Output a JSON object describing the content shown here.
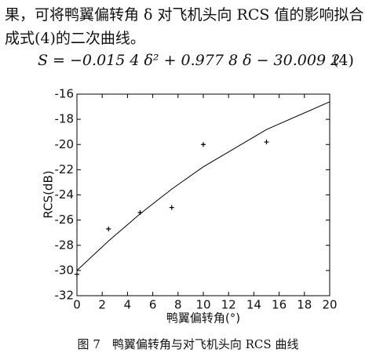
{
  "text": {
    "line1": "果，可将鸭翼偏转角 δ 对飞机头向 RCS 值的影响拟合",
    "line2": "成式(4)的二次曲线。",
    "equation": "S = −0.015 4 δ² + 0.977 8 δ − 30.009 2",
    "equation_number": "(4)"
  },
  "chart_data": {
    "type": "scatter",
    "y_label": "RCS(dB)",
    "x_label": "鸭翼偏转角(°)",
    "xlim": [
      0,
      20
    ],
    "ylim": [
      -32,
      -16
    ],
    "xticks": [
      0,
      2,
      4,
      6,
      8,
      10,
      12,
      14,
      16,
      18,
      20
    ],
    "yticks": [
      -32,
      -30,
      -28,
      -26,
      -24,
      -22,
      -20,
      -18,
      -16
    ],
    "series": [
      {
        "type": "scatter",
        "color": "#000000",
        "x": [
          0,
          2.5,
          5,
          7.5,
          10,
          15
        ],
        "values": [
          -30.3,
          -26.7,
          -25.4,
          -25.0,
          -20.0,
          -19.8
        ]
      },
      {
        "type": "line",
        "color": "#000000",
        "x": [
          0,
          2.5,
          5,
          7.5,
          10,
          15,
          20
        ],
        "values": [
          -30.0,
          -27.66,
          -25.5,
          -23.54,
          -21.77,
          -18.81,
          -16.61
        ]
      }
    ]
  },
  "caption": "图 7　鸭翼偏转角与对飞机头向 RCS 曲线"
}
